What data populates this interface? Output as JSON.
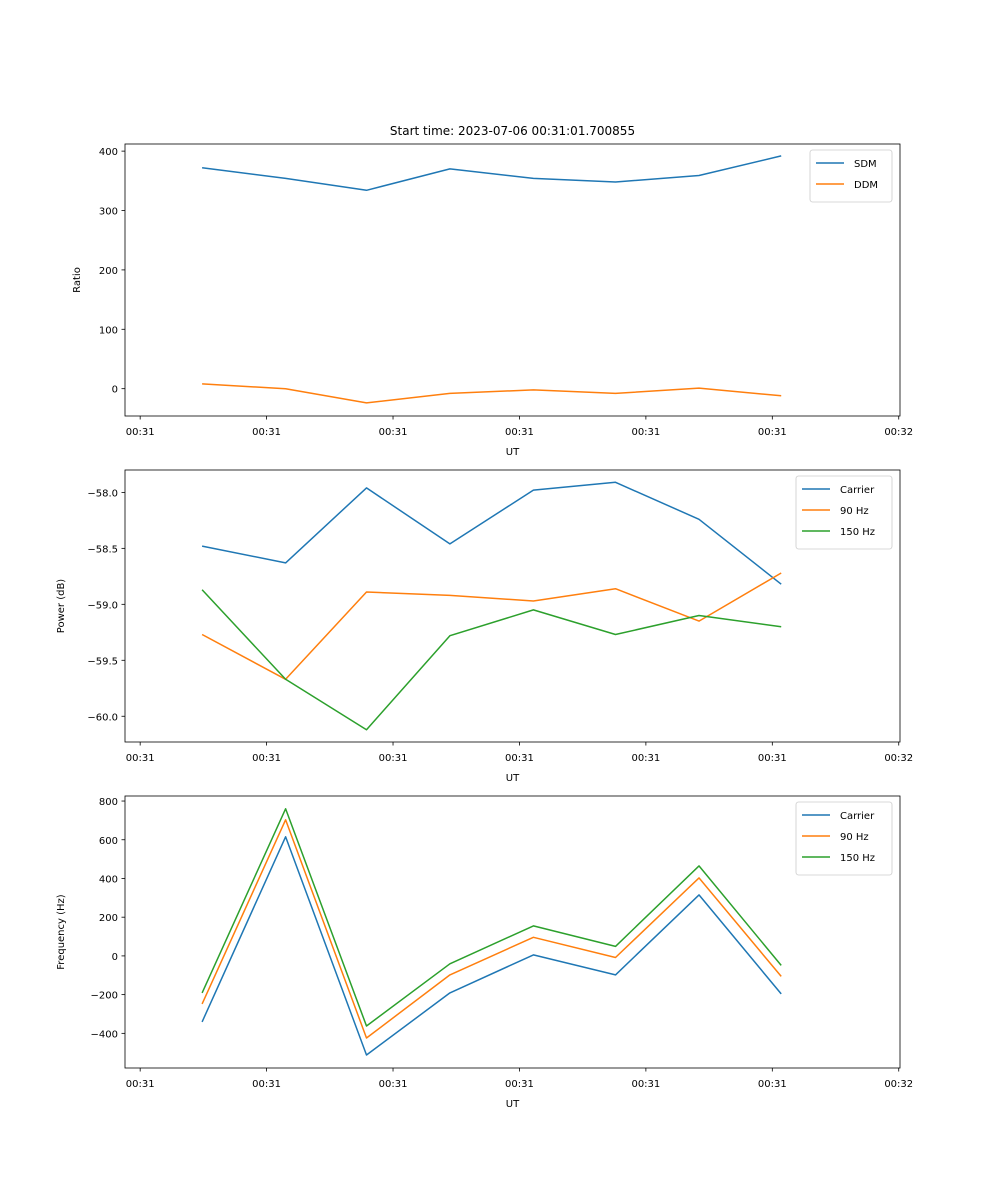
{
  "figure_title": "Start time: 2023-07-06 00:31:01.700855",
  "chart_data": [
    {
      "type": "line",
      "title": "Start time: 2023-07-06 00:31:01.700855",
      "xlabel": "UT",
      "ylabel": "Ratio",
      "x_tick_labels": [
        "00:31",
        "00:31",
        "00:31",
        "00:31",
        "00:31",
        "00:31",
        "00:32"
      ],
      "x_tick_seconds": [
        0,
        10,
        20,
        30,
        40,
        50,
        60
      ],
      "xlim_seconds": [
        -1.2,
        60.1
      ],
      "x_seconds": [
        4.9,
        11.5,
        17.9,
        24.5,
        31.1,
        37.6,
        44.2,
        50.7
      ],
      "yticks": [
        0,
        100,
        200,
        300,
        400
      ],
      "ytick_labels": [
        "0",
        "100",
        "200",
        "300",
        "400"
      ],
      "ylim": [
        -46,
        412
      ],
      "grid": false,
      "legend_position": "top-right",
      "series": [
        {
          "name": "SDM",
          "color": "#1f77b4",
          "values": [
            372,
            354,
            334,
            370,
            354,
            348,
            359,
            392
          ]
        },
        {
          "name": "DDM",
          "color": "#ff7f0e",
          "values": [
            8,
            0,
            -24,
            -8,
            -2,
            -8,
            1,
            -12
          ]
        }
      ]
    },
    {
      "type": "line",
      "title": "",
      "xlabel": "UT",
      "ylabel": "Power (dB)",
      "x_tick_labels": [
        "00:31",
        "00:31",
        "00:31",
        "00:31",
        "00:31",
        "00:31",
        "00:32"
      ],
      "x_tick_seconds": [
        0,
        10,
        20,
        30,
        40,
        50,
        60
      ],
      "xlim_seconds": [
        -1.2,
        60.1
      ],
      "x_seconds": [
        4.9,
        11.5,
        17.9,
        24.5,
        31.1,
        37.6,
        44.2,
        50.7
      ],
      "yticks": [
        -60.0,
        -59.5,
        -59.0,
        -58.5,
        -58.0
      ],
      "ytick_labels": [
        "−60.0",
        "−59.5",
        "−59.0",
        "−58.5",
        "−58.0"
      ],
      "ylim": [
        -60.23,
        -57.8
      ],
      "grid": false,
      "legend_position": "top-right",
      "series": [
        {
          "name": "Carrier",
          "color": "#1f77b4",
          "values": [
            -58.48,
            -58.63,
            -57.96,
            -58.46,
            -57.98,
            -57.91,
            -58.24,
            -58.82
          ]
        },
        {
          "name": "90 Hz",
          "color": "#ff7f0e",
          "values": [
            -59.27,
            -59.67,
            -58.89,
            -58.92,
            -58.97,
            -58.86,
            -59.15,
            -58.72
          ]
        },
        {
          "name": "150 Hz",
          "color": "#2ca02c",
          "values": [
            -58.87,
            -59.67,
            -60.12,
            -59.28,
            -59.05,
            -59.27,
            -59.1,
            -59.2
          ]
        }
      ]
    },
    {
      "type": "line",
      "title": "",
      "xlabel": "UT",
      "ylabel": "Frequency (Hz)",
      "x_tick_labels": [
        "00:31",
        "00:31",
        "00:31",
        "00:31",
        "00:31",
        "00:31",
        "00:32"
      ],
      "x_tick_seconds": [
        0,
        10,
        20,
        30,
        40,
        50,
        60
      ],
      "xlim_seconds": [
        -1.2,
        60.1
      ],
      "x_seconds": [
        4.9,
        11.5,
        17.9,
        24.5,
        31.1,
        37.6,
        44.2,
        50.7
      ],
      "yticks": [
        -400,
        -200,
        0,
        200,
        400,
        600,
        800
      ],
      "ytick_labels": [
        "−400",
        "−200",
        "0",
        "200",
        "400",
        "600",
        "800"
      ],
      "ylim": [
        -579,
        826
      ],
      "grid": false,
      "legend_position": "top-right",
      "series": [
        {
          "name": "Carrier",
          "color": "#1f77b4",
          "values": [
            -341,
            615,
            -512,
            -191,
            5,
            -98,
            315,
            -196
          ]
        },
        {
          "name": "90 Hz",
          "color": "#ff7f0e",
          "values": [
            -248,
            703,
            -424,
            -98,
            96,
            -8,
            403,
            -106
          ]
        },
        {
          "name": "150 Hz",
          "color": "#2ca02c",
          "values": [
            -191,
            760,
            -362,
            -41,
            155,
            49,
            465,
            -49
          ]
        }
      ]
    }
  ]
}
